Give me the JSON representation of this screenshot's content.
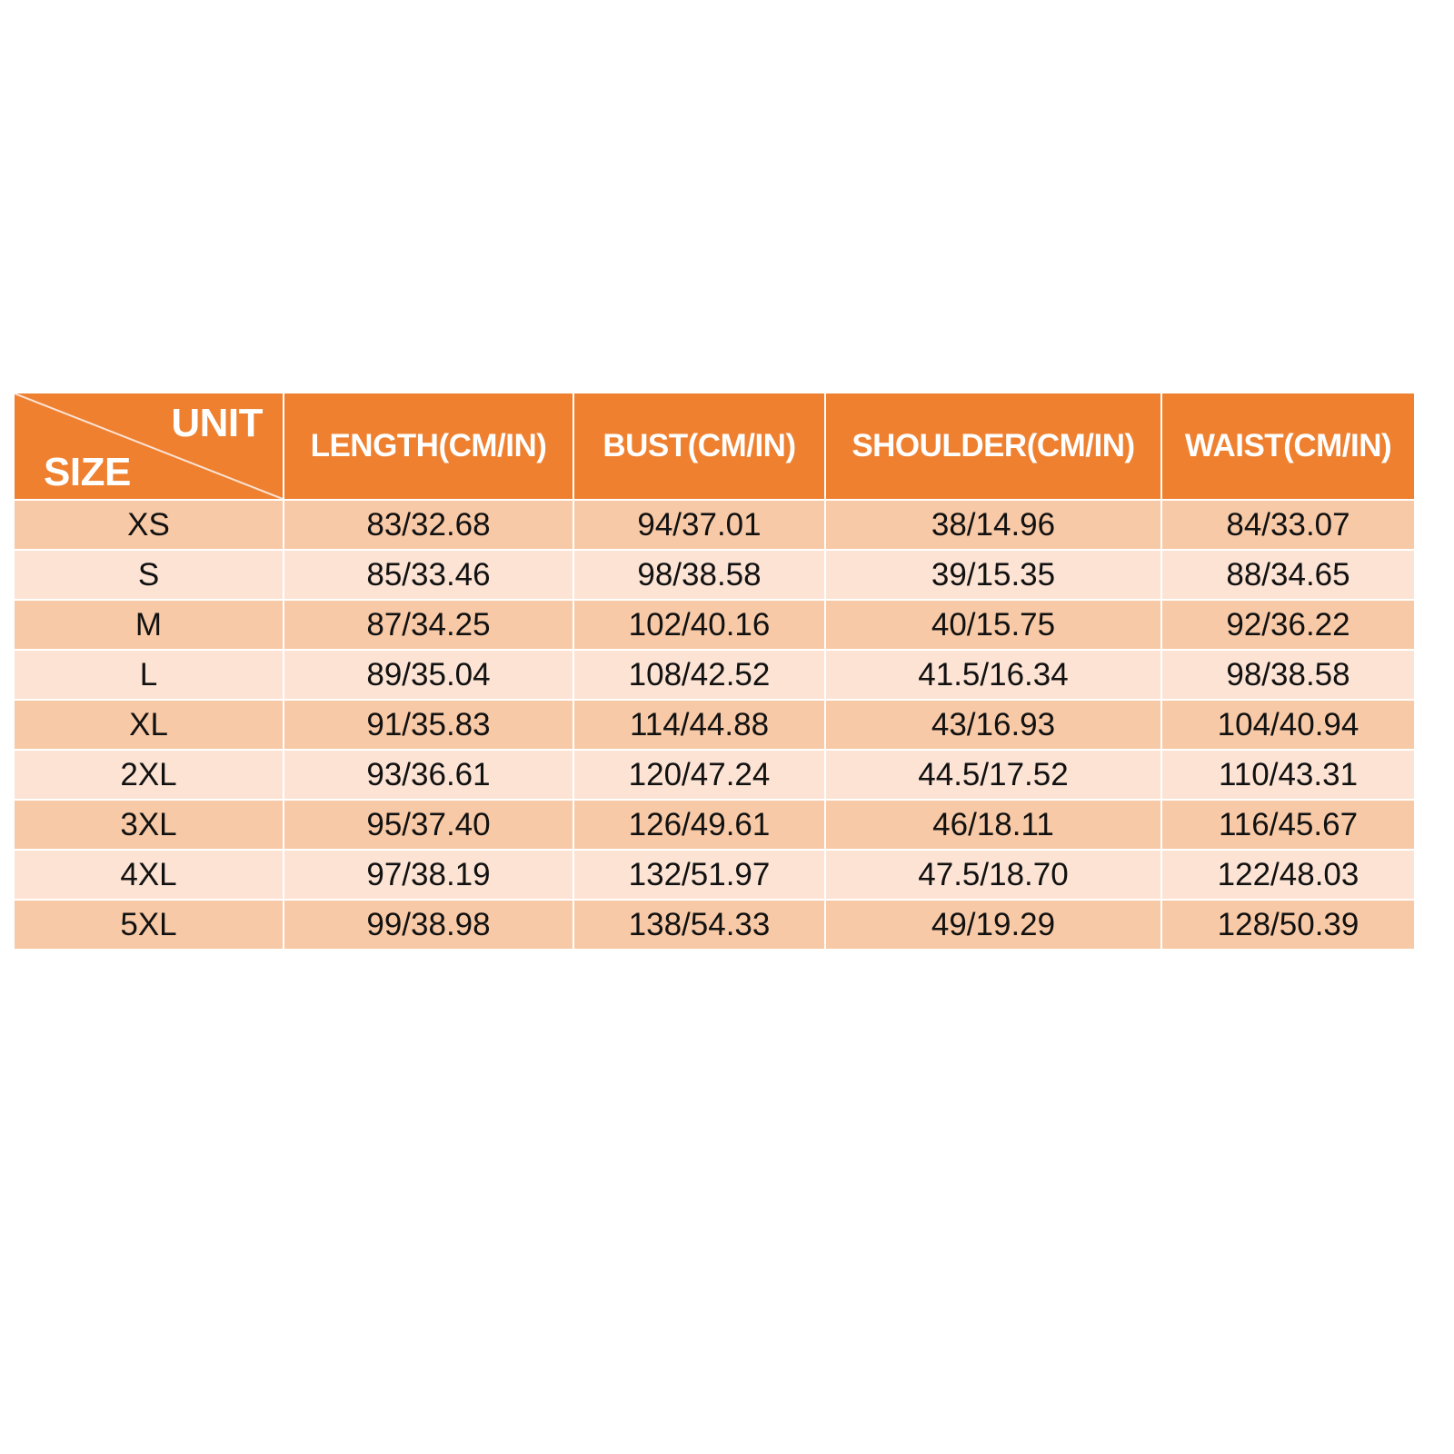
{
  "header": {
    "corner_unit": "UNIT",
    "corner_size": "SIZE",
    "columns": [
      "LENGTH(CM/IN)",
      "BUST(CM/IN)",
      "SHOULDER(CM/IN)",
      "WAIST(CM/IN)"
    ]
  },
  "colors": {
    "header": "#EE8030",
    "row_dark": "#F8C9A6",
    "row_light": "#FCE3D4"
  },
  "rows": [
    {
      "size": "XS",
      "values": [
        "83/32.68",
        "94/37.01",
        "38/14.96",
        "84/33.07"
      ]
    },
    {
      "size": "S",
      "values": [
        "85/33.46",
        "98/38.58",
        "39/15.35",
        "88/34.65"
      ]
    },
    {
      "size": "M",
      "values": [
        "87/34.25",
        "102/40.16",
        "40/15.75",
        "92/36.22"
      ]
    },
    {
      "size": "L",
      "values": [
        "89/35.04",
        "108/42.52",
        "41.5/16.34",
        "98/38.58"
      ]
    },
    {
      "size": "XL",
      "values": [
        "91/35.83",
        "114/44.88",
        "43/16.93",
        "104/40.94"
      ]
    },
    {
      "size": "2XL",
      "values": [
        "93/36.61",
        "120/47.24",
        "44.5/17.52",
        "110/43.31"
      ]
    },
    {
      "size": "3XL",
      "values": [
        "95/37.40",
        "126/49.61",
        "46/18.11",
        "116/45.67"
      ]
    },
    {
      "size": "4XL",
      "values": [
        "97/38.19",
        "132/51.97",
        "47.5/18.70",
        "122/48.03"
      ]
    },
    {
      "size": "5XL",
      "values": [
        "99/38.98",
        "138/54.33",
        "49/19.29",
        "128/50.39"
      ]
    }
  ]
}
